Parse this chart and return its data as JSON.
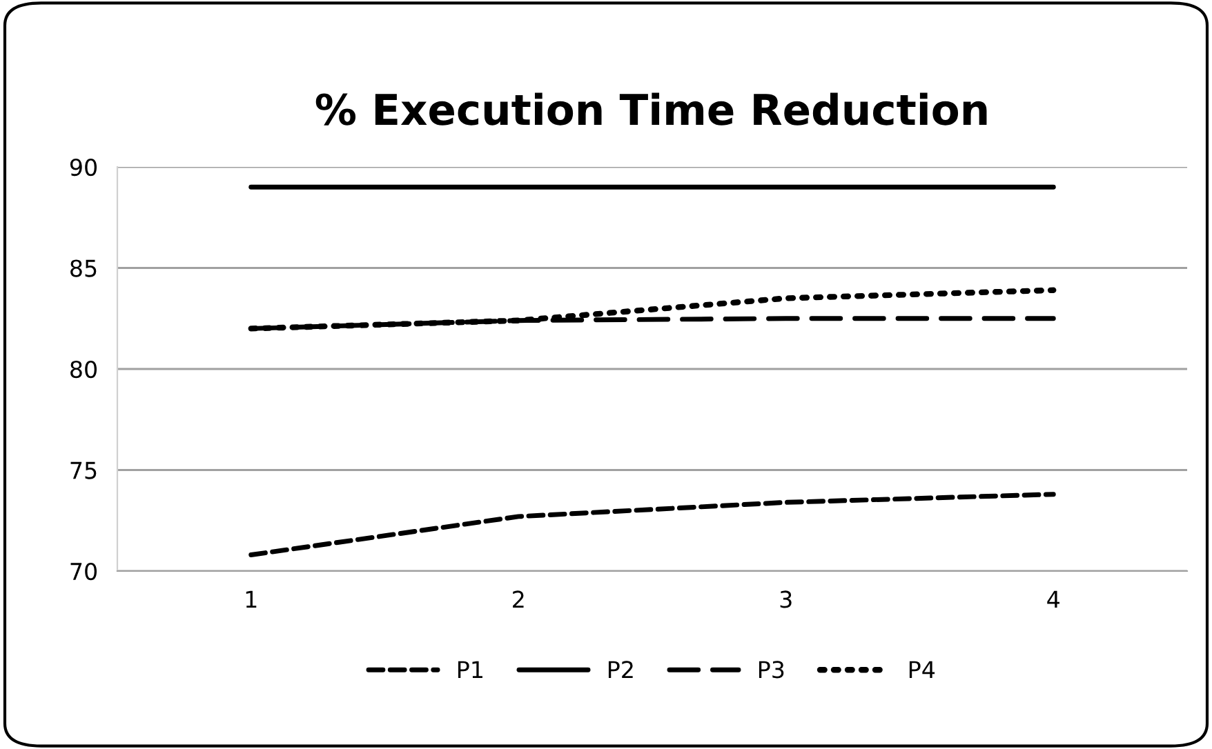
{
  "chart_data": {
    "type": "line",
    "title": "% Execution Time Reduction",
    "categories": [
      "1",
      "2",
      "3",
      "4"
    ],
    "series": [
      {
        "name": "P1",
        "color": "#000000",
        "line_style": "dashed",
        "values": [
          70.8,
          72.7,
          73.4,
          73.8
        ]
      },
      {
        "name": "P2",
        "color": "#000000",
        "line_style": "solid",
        "values": [
          89,
          89,
          89,
          89
        ]
      },
      {
        "name": "P3",
        "color": "#000000",
        "line_style": "longdash",
        "values": [
          82,
          82.4,
          82.5,
          82.5
        ]
      },
      {
        "name": "P4",
        "color": "#000000",
        "line_style": "dotted",
        "values": [
          82,
          82.4,
          83.5,
          83.9
        ]
      }
    ],
    "ylim": [
      70,
      90
    ],
    "yticks": [
      70,
      75,
      80,
      85,
      90
    ],
    "grid": "y",
    "legend": "bottom",
    "marker": "none"
  }
}
